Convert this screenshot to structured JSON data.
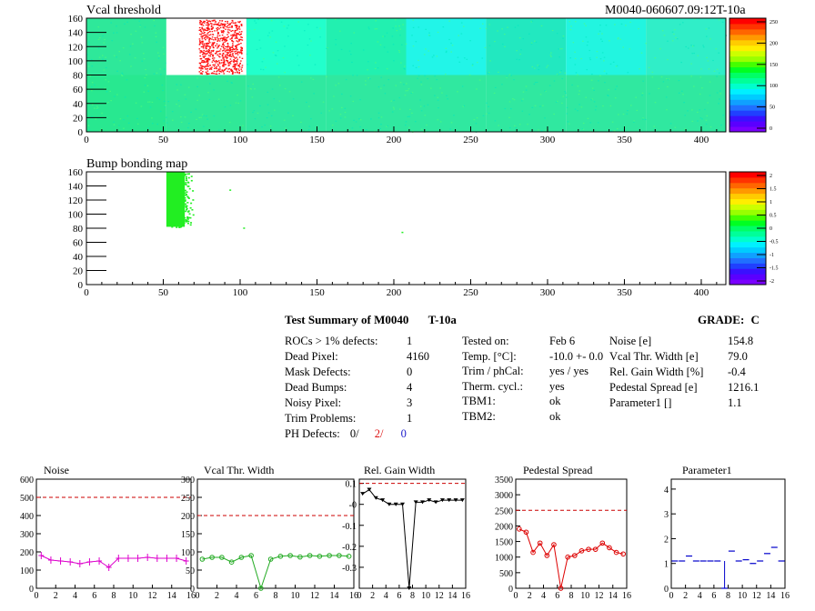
{
  "header": {
    "left_title": "Vcal threshold",
    "right_title": "M0040-060607.09:12T-10a"
  },
  "map1": {
    "title": "Vcal threshold",
    "x_ticks": [
      0,
      50,
      100,
      150,
      200,
      250,
      300,
      350,
      400
    ],
    "y_ticks": [
      0,
      20,
      40,
      60,
      80,
      100,
      120,
      140,
      160
    ],
    "xlim": [
      0,
      416
    ],
    "ylim": [
      0,
      160
    ],
    "z_ticks": [
      "250",
      "200",
      "150",
      "100",
      "50",
      "0"
    ]
  },
  "map2": {
    "title": "Bump bonding map",
    "x_ticks": [
      0,
      50,
      100,
      150,
      200,
      250,
      300,
      350,
      400
    ],
    "y_ticks": [
      0,
      20,
      40,
      60,
      80,
      100,
      120,
      140,
      160
    ],
    "xlim": [
      0,
      416
    ],
    "ylim": [
      0,
      160
    ],
    "z_ticks": [
      "2",
      "1.5",
      "1",
      "0.5",
      "0",
      "-0.5",
      "-1",
      "-1.5",
      "-2"
    ]
  },
  "summary": {
    "title": "Test Summary of M0040",
    "temp_tag": "T-10a",
    "grade_label": "GRADE:",
    "grade_value": "C",
    "col1": [
      {
        "label": "ROCs > 1% defects:",
        "value": "1"
      },
      {
        "label": "Dead Pixel:",
        "value": "4160"
      },
      {
        "label": "Mask Defects:",
        "value": "0"
      },
      {
        "label": "Dead Bumps:",
        "value": "4"
      },
      {
        "label": "Noisy Pixel:",
        "value": "3"
      },
      {
        "label": "Trim Problems:",
        "value": "1"
      }
    ],
    "ph_defects_label": "PH Defects:",
    "ph_defects": [
      "0/",
      "2/",
      "0"
    ],
    "col2": [
      {
        "label": "Tested on:",
        "value": "Feb 6"
      },
      {
        "label": "Temp. [°C]:",
        "value": "-10.0 +- 0.0"
      },
      {
        "label": "Trim / phCal:",
        "value": "yes / yes"
      },
      {
        "label": "Therm. cycl.:",
        "value": "yes"
      },
      {
        "label": "TBM1:",
        "value": "ok"
      },
      {
        "label": "TBM2:",
        "value": "ok"
      }
    ],
    "col3": [
      {
        "label": "Noise [e]",
        "value": "154.8"
      },
      {
        "label": "Vcal Thr. Width [e]",
        "value": "79.0"
      },
      {
        "label": "Rel. Gain Width [%]",
        "value": "-0.4"
      },
      {
        "label": "Pedestal Spread [e]",
        "value": "1216.1"
      },
      {
        "label": "Parameter1 []",
        "value": "1.1"
      }
    ]
  },
  "chart_data": [
    {
      "type": "line",
      "title": "Noise",
      "x": [
        0,
        1,
        2,
        3,
        4,
        5,
        6,
        7,
        8,
        9,
        10,
        11,
        12,
        13,
        14,
        15
      ],
      "values": [
        180,
        155,
        150,
        145,
        135,
        145,
        150,
        115,
        165,
        165,
        165,
        170,
        165,
        165,
        165,
        150
      ],
      "ylim": [
        0,
        600
      ],
      "y_ticks": [
        0,
        100,
        200,
        300,
        400,
        500,
        600
      ],
      "x_ticks": [
        0,
        2,
        4,
        6,
        8,
        10,
        12,
        14,
        16
      ],
      "threshold": 500,
      "color": "#dd00cc"
    },
    {
      "type": "line",
      "title": "Vcal Thr. Width",
      "x": [
        0,
        1,
        2,
        3,
        4,
        5,
        6,
        7,
        8,
        9,
        10,
        11,
        12,
        13,
        14,
        15
      ],
      "values": [
        80,
        85,
        85,
        72,
        85,
        90,
        0,
        80,
        88,
        90,
        86,
        90,
        88,
        90,
        90,
        88
      ],
      "ylim": [
        0,
        300
      ],
      "y_ticks": [
        0,
        50,
        100,
        150,
        200,
        250,
        300
      ],
      "x_ticks": [
        0,
        2,
        4,
        6,
        8,
        10,
        12,
        14,
        16
      ],
      "threshold": 200,
      "color": "#22aa22"
    },
    {
      "type": "line",
      "title": "Rel. Gain Width",
      "x": [
        0,
        1,
        2,
        3,
        4,
        5,
        6,
        7,
        8,
        9,
        10,
        11,
        12,
        13,
        14,
        15
      ],
      "values": [
        0.05,
        0.07,
        0.03,
        0.02,
        0.0,
        0.0,
        0.0,
        -0.4,
        0.01,
        0.01,
        0.02,
        0.01,
        0.02,
        0.02,
        0.02,
        0.02
      ],
      "ylim": [
        -0.4,
        0.12
      ],
      "y_ticks": [
        0.1,
        0,
        -0.1,
        -0.2,
        -0.3
      ],
      "y_tick_labels": [
        "0.1",
        "-0",
        "-0.1",
        "-0.2",
        "-0.3"
      ],
      "x_ticks": [
        0,
        2,
        4,
        6,
        8,
        10,
        12,
        14,
        16
      ],
      "threshold": 0.1,
      "color": "#000000"
    },
    {
      "type": "line",
      "title": "Pedestal Spread",
      "x": [
        0,
        1,
        2,
        3,
        4,
        5,
        6,
        7,
        8,
        9,
        10,
        11,
        12,
        13,
        14,
        15
      ],
      "values": [
        1900,
        1800,
        1150,
        1450,
        1050,
        1400,
        0,
        1000,
        1050,
        1200,
        1250,
        1250,
        1450,
        1300,
        1150,
        1100
      ],
      "ylim": [
        0,
        3500
      ],
      "y_ticks": [
        0,
        500,
        1000,
        1500,
        2000,
        2500,
        3000,
        3500
      ],
      "x_ticks": [
        0,
        2,
        4,
        6,
        8,
        10,
        12,
        14,
        16
      ],
      "threshold": 2500,
      "color": "#dd0000"
    },
    {
      "type": "scatter",
      "title": "Parameter1",
      "x": [
        0,
        1,
        2,
        3,
        4,
        5,
        6,
        7,
        8,
        9,
        10,
        11,
        12,
        13,
        14,
        15
      ],
      "values": [
        1.1,
        1.1,
        1.3,
        1.1,
        1.1,
        1.1,
        1.1,
        0.0,
        1.5,
        1.1,
        1.15,
        1.0,
        1.1,
        1.4,
        1.65,
        1.1
      ],
      "ylim": [
        0,
        4.4
      ],
      "y_ticks": [
        0,
        1,
        2,
        3,
        4
      ],
      "x_ticks": [
        0,
        2,
        4,
        6,
        8,
        10,
        12,
        14,
        16
      ],
      "color": "#0000cc"
    }
  ]
}
